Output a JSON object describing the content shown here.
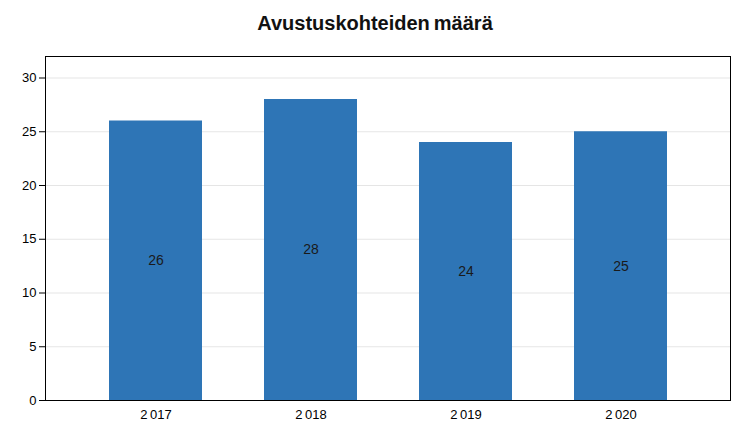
{
  "chart_data": {
    "type": "bar",
    "title": "Avustuskohteiden määrä",
    "categories": [
      "2 017",
      "2 018",
      "2 019",
      "2 020"
    ],
    "values": [
      26,
      28,
      24,
      25
    ],
    "color": "#2E75B6",
    "ylim": [
      0,
      32
    ],
    "yticks": [
      0,
      5,
      10,
      15,
      20,
      25,
      30
    ],
    "grid": true,
    "data_labels": true
  }
}
